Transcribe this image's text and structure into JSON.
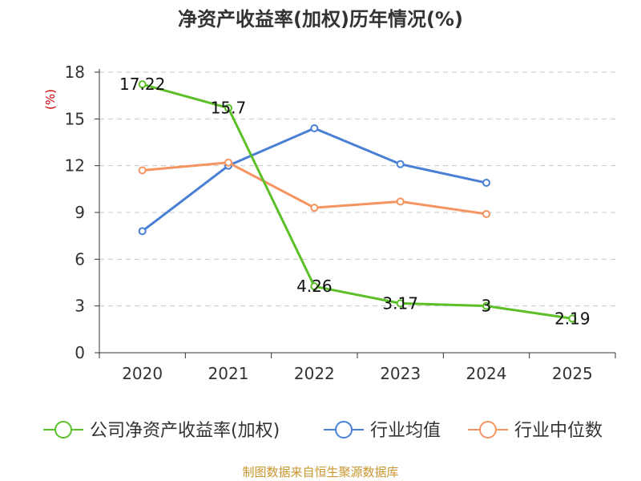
{
  "chart_data": {
    "type": "line",
    "title": "净资产收益率(加权)历年情况(%)",
    "ylabel": "(%)",
    "xlabel": "",
    "categories": [
      "2020",
      "2021",
      "2022",
      "2023",
      "2024",
      "2025"
    ],
    "ylim": [
      0,
      18
    ],
    "yticks": [
      0,
      3,
      6,
      9,
      12,
      15,
      18
    ],
    "grid": true,
    "legend_position": "bottom",
    "series": [
      {
        "name": "公司净资产收益率(加权)",
        "color": "#5cbf28",
        "values": [
          17.22,
          15.7,
          4.26,
          3.17,
          3,
          2.19
        ],
        "labels": [
          "17.22",
          "15.7",
          "4.26",
          "3.17",
          "3",
          "2.19"
        ],
        "show_labels": true
      },
      {
        "name": "行业均值",
        "color": "#4a7fd6",
        "values": [
          7.8,
          12.0,
          14.4,
          12.1,
          10.9,
          null
        ],
        "show_labels": false
      },
      {
        "name": "行业中位数",
        "color": "#f59460",
        "values": [
          11.7,
          12.2,
          9.3,
          9.7,
          8.9,
          null
        ],
        "show_labels": false
      }
    ],
    "unit_color": "#cc0000"
  },
  "footer": "制图数据来自恒生聚源数据库"
}
